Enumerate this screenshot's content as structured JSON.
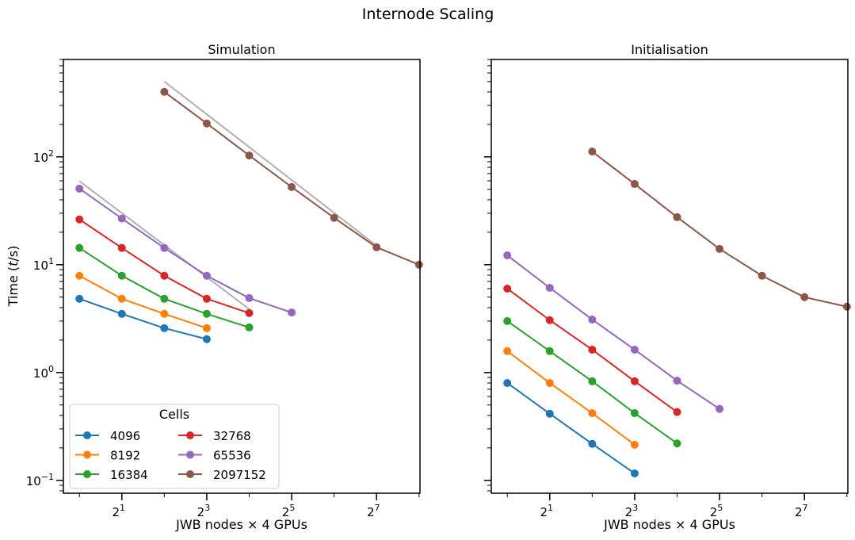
{
  "chart_data": {
    "title": "Internode Scaling",
    "type": "line",
    "colors": {
      "4096": "#1f77b4",
      "8192": "#ff7f0e",
      "16384": "#2ca02c",
      "32768": "#d62728",
      "65536": "#9467bd",
      "2097152": "#8c564b",
      "ideal": "#b0b0b0"
    },
    "legend": {
      "title": "Cells",
      "placement": "lower-left",
      "entries": [
        "4096",
        "8192",
        "16384",
        "32768",
        "65536",
        "2097152"
      ]
    },
    "xlabel": "JWB nodes × 4 GPUs",
    "ylabel_prefix": "Time (",
    "ylabel_var": "t",
    "ylabel_suffix": "/s)",
    "xscale": "log2",
    "yscale": "log10",
    "xlim": [
      0.77,
      260
    ],
    "ylim": [
      0.076,
      800
    ],
    "xticks": [
      {
        "value": 2,
        "base": "2",
        "exp": "1"
      },
      {
        "value": 8,
        "base": "2",
        "exp": "3"
      },
      {
        "value": 32,
        "base": "2",
        "exp": "5"
      },
      {
        "value": 128,
        "base": "2",
        "exp": "7"
      }
    ],
    "yticks": [
      {
        "value": 100,
        "base": "10",
        "exp": "2"
      },
      {
        "value": 10,
        "base": "10",
        "exp": "1"
      },
      {
        "value": 1,
        "base": "10",
        "exp": "0"
      },
      {
        "value": 0.1,
        "base": "10",
        "exp": "−1"
      }
    ],
    "panels": [
      {
        "title": "Simulation",
        "series": [
          {
            "name": "4096",
            "x": [
              1,
              2,
              4,
              8
            ],
            "y": [
              4.83,
              3.5,
              2.58,
              2.04
            ]
          },
          {
            "name": "8192",
            "x": [
              1,
              2,
              4,
              8
            ],
            "y": [
              7.9,
              4.83,
              3.5,
              2.58
            ]
          },
          {
            "name": "16384",
            "x": [
              1,
              2,
              4,
              8,
              16
            ],
            "y": [
              14.3,
              7.9,
              4.83,
              3.5,
              2.62
            ]
          },
          {
            "name": "32768",
            "x": [
              1,
              2,
              4,
              8,
              16
            ],
            "y": [
              26.3,
              14.3,
              7.9,
              4.83,
              3.56
            ]
          },
          {
            "name": "65536",
            "x": [
              1,
              2,
              4,
              8,
              16,
              32
            ],
            "y": [
              50.8,
              26.8,
              14.3,
              7.9,
              4.9,
              3.6
            ]
          },
          {
            "name": "2097152",
            "x": [
              4,
              8,
              16,
              32,
              64,
              128,
              256
            ],
            "y": [
              401,
              204,
              103,
              52.5,
              27.2,
              14.5,
              10
            ]
          }
        ],
        "ideal": [
          {
            "x": [
              1,
              16
            ],
            "y": [
              59.6,
              3.87
            ]
          },
          {
            "x": [
              4,
              128
            ],
            "y": [
              500,
              15
            ]
          }
        ]
      },
      {
        "title": "Initialisation",
        "series": [
          {
            "name": "4096",
            "x": [
              1,
              2,
              4,
              8
            ],
            "y": [
              0.8,
              0.415,
              0.218,
              0.116
            ]
          },
          {
            "name": "8192",
            "x": [
              1,
              2,
              4,
              8
            ],
            "y": [
              1.58,
              0.8,
              0.42,
              0.214
            ]
          },
          {
            "name": "16384",
            "x": [
              1,
              2,
              4,
              8,
              16
            ],
            "y": [
              3.0,
              1.58,
              0.83,
              0.42,
              0.22
            ]
          },
          {
            "name": "32768",
            "x": [
              1,
              2,
              4,
              8,
              16
            ],
            "y": [
              6.0,
              3.06,
              1.63,
              0.83,
              0.43
            ]
          },
          {
            "name": "65536",
            "x": [
              1,
              2,
              4,
              8,
              16,
              32
            ],
            "y": [
              12.2,
              6.1,
              3.1,
              1.63,
              0.84,
              0.46
            ]
          },
          {
            "name": "2097152",
            "x": [
              4,
              8,
              16,
              32,
              64,
              128,
              256
            ],
            "y": [
              112,
              56,
              27.6,
              14,
              7.9,
              5.0,
              4.08
            ]
          }
        ],
        "ideal": []
      }
    ]
  }
}
